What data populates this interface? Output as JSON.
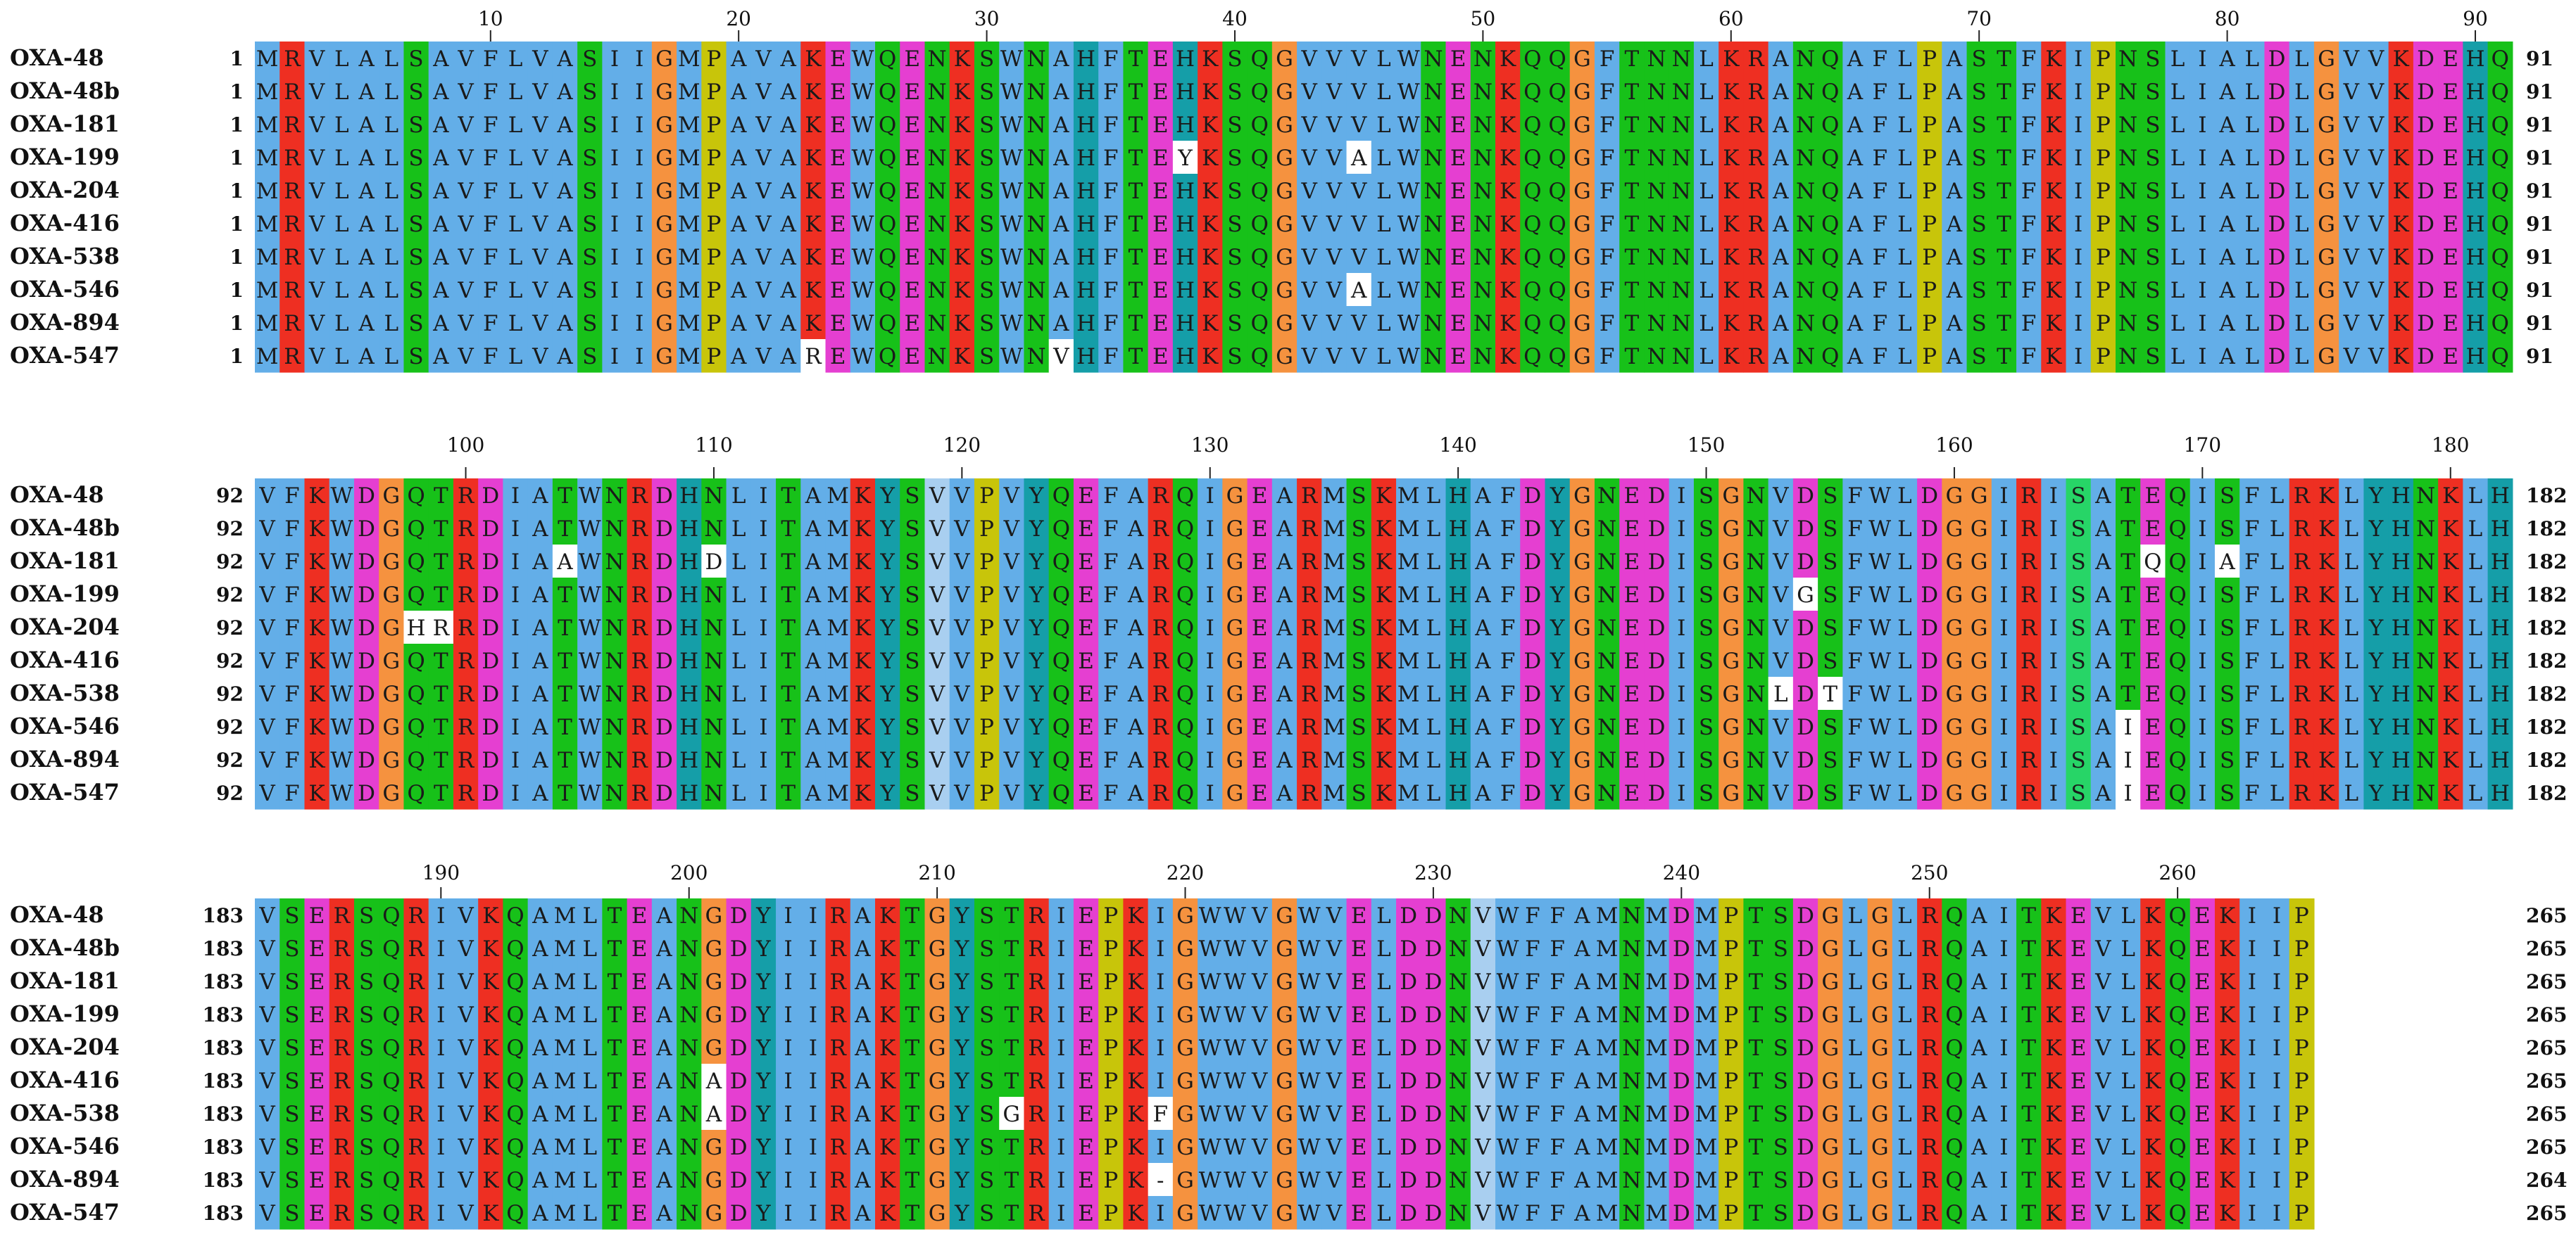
{
  "blocks": [
    {
      "start": 1,
      "rows": [
        {
          "name": "OXA-48",
          "seq": "MRVLALSAVFLVASIIGMPAVAKEWQENKSWNAHFTEHKSQGVVVLWNENKQQGFTNNLKRANQAFLPASTFKIPNSLIALDLGVVKDEHQ",
          "end": 91
        },
        {
          "name": "OXA-48b",
          "seq": "MRVLALSAVFLVASIIGMPAVAKEWQENKSWNAHFTEHKSQGVVVLWNENKQQGFTNNLKRANQAFLPASTFKIPNSLIALDLGVVKDEHQ",
          "end": 91
        },
        {
          "name": "OXA-181",
          "seq": "MRVLALSAVFLVASIIGMPAVAKEWQENKSWNAHFTEHKSQGVVVLWNENKQQGFTNNLKRANQAFLPASTFKIPNSLIALDLGVVKDEHQ",
          "end": 91
        },
        {
          "name": "OXA-199",
          "seq": "MRVLALSAVFLVASIIGMPAVAKEWQENKSWNAHFTEYKSQGVVALWNENKQQGFTNNLKRANQAFLPASTFKIPNSLIALDLGVVKDEHQ",
          "end": 91
        },
        {
          "name": "OXA-204",
          "seq": "MRVLALSAVFLVASIIGMPAVAKEWQENKSWNAHFTEHKSQGVVVLWNENKQQGFTNNLKRANQAFLPASTFKIPNSLIALDLGVVKDEHQ",
          "end": 91
        },
        {
          "name": "OXA-416",
          "seq": "MRVLALSAVFLVASIIGMPAVAKEWQENKSWNAHFTEHKSQGVVVLWNENKQQGFTNNLKRANQAFLPASTFKIPNSLIALDLGVVKDEHQ",
          "end": 91
        },
        {
          "name": "OXA-538",
          "seq": "MRVLALSAVFLVASIIGMPAVAKEWQENKSWNAHFTEHKSQGVVVLWNENKQQGFTNNLKRANQAFLPASTFKIPNSLIALDLGVVKDEHQ",
          "end": 91
        },
        {
          "name": "OXA-546",
          "seq": "MRVLALSAVFLVASIIGMPAVAKEWQENKSWNAHFTEHKSQGVVALWNENKQQGFTNNLKRANQAFLPASTFKIPNSLIALDLGVVKDEHQ",
          "end": 91
        },
        {
          "name": "OXA-894",
          "seq": "MRVLALSAVFLVASIIGMPAVAKEWQENKSWNAHFTEHKSQGVVVLWNENKQQGFTNNLKRANQAFLPASTFKIPNSLIALDLGVVKDEHQ",
          "end": 91
        },
        {
          "name": "OXA-547",
          "seq": "MRVLALSAVFLVASIIGMPAVAREWQENKSWNVHFTEHKSQGVVVLWNENKQQGFTNNLKRANQAFLPASTFKIPNSLIALDLGVVKDEHQ",
          "end": 91
        }
      ]
    },
    {
      "start": 92,
      "rows": [
        {
          "name": "OXA-48",
          "seq": "VFKWDGQTRDIATWNRDHNLITAMKYSVVPVYQEFARQIGEARMSKMLHAFDYGNEDISGNVDSFWLDGGIRISATEQISFLRKLYHNKLH",
          "end": 182
        },
        {
          "name": "OXA-48b",
          "seq": "VFKWDGQTRDIATWNRDHNLITAMKYSVVPVYQEFARQIGEARMSKMLHAFDYGNEDISGNVDSFWLDGGIRISATEQISFLRKLYHNKLH",
          "end": 182
        },
        {
          "name": "OXA-181",
          "seq": "VFKWDGQTRDIAAWNRDHDLITAMKYSVVPVYQEFARQIGEARMSKMLHAFDYGNEDISGNVDSFWLDGGIRISATQQIAFLRKLYHNKLH",
          "end": 182
        },
        {
          "name": "OXA-199",
          "seq": "VFKWDGQTRDIATWNRDHNLITAMKYSVVPVYQEFARQIGEARMSKMLHAFDYGNEDISGNVGSFWLDGGIRISATEQISFLRKLYHNKLH",
          "end": 182
        },
        {
          "name": "OXA-204",
          "seq": "VFKWDGHRRDIATWNRDHNLITAMKYSVVPVYQEFARQIGEARMSKMLHAFDYGNEDISGNVDSFWLDGGIRISATEQISFLRKLYHNKLH",
          "end": 182
        },
        {
          "name": "OXA-416",
          "seq": "VFKWDGQTRDIATWNRDHNLITAMKYSVVPVYQEFARQIGEARMSKMLHAFDYGNEDISGNVDSFWLDGGIRISATEQISFLRKLYHNKLH",
          "end": 182
        },
        {
          "name": "OXA-538",
          "seq": "VFKWDGQTRDIATWNRDHNLITAMKYSVVPVYQEFARQIGEARMSKMLHAFDYGNEDISGNLDTFWLDGGIRISATEQISFLRKLYHNKLH",
          "end": 182
        },
        {
          "name": "OXA-546",
          "seq": "VFKWDGQTRDIATWNRDHNLITAMKYSVVPVYQEFARQIGEARMSKMLHAFDYGNEDISGNVDSFWLDGGIRISAIEQISFLRKLYHNKLH",
          "end": 182
        },
        {
          "name": "OXA-894",
          "seq": "VFKWDGQTRDIATWNRDHNLITAMKYSVVPVYQEFARQIGEARMSKMLHAFDYGNEDISGNVDSFWLDGGIRISAIEQISFLRKLYHNKLH",
          "end": 182
        },
        {
          "name": "OXA-547",
          "seq": "VFKWDGQTRDIATWNRDHNLITAMKYSVVPVYQEFARQIGEARMSKMLHAFDYGNEDISGNVDSFWLDGGIRISAIEQISFLRKLYHNKLH",
          "end": 182
        }
      ]
    },
    {
      "start": 183,
      "rows": [
        {
          "name": "OXA-48",
          "seq": "VSERSQRIVKQAMLTEANGDYIIRAKTGYSTRIEPKIGWWVGWVELDDNVWFFAMNMDMPTSDGLGLRQAITKEVLKQEKIIP",
          "end": 265
        },
        {
          "name": "OXA-48b",
          "seq": "VSERSQRIVKQAMLTEANGDYIIRAKTGYSTRIEPKIGWWVGWVELDDNVWFFAMNMDMPTSDGLGLRQAITKEVLKQEKIIP",
          "end": 265
        },
        {
          "name": "OXA-181",
          "seq": "VSERSQRIVKQAMLTEANGDYIIRAKTGYSTRIEPKIGWWVGWVELDDNVWFFAMNMDMPTSDGLGLRQAITKEVLKQEKIIP",
          "end": 265
        },
        {
          "name": "OXA-199",
          "seq": "VSERSQRIVKQAMLTEANGDYIIRAKTGYSTRIEPKIGWWVGWVELDDNVWFFAMNMDMPTSDGLGLRQAITKEVLKQEKIIP",
          "end": 265
        },
        {
          "name": "OXA-204",
          "seq": "VSERSQRIVKQAMLTEANGDYIIRAKTGYSTRIEPKIGWWVGWVELDDNVWFFAMNMDMPTSDGLGLRQAITKEVLKQEKIIP",
          "end": 265
        },
        {
          "name": "OXA-416",
          "seq": "VSERSQRIVKQAMLTEANADYIIRAKTGYSTRIEPKIGWWVGWVELDDNVWFFAMNMDMPTSDGLGLRQAITKEVLKQEKIIP",
          "end": 265
        },
        {
          "name": "OXA-538",
          "seq": "VSERSQRIVKQAMLTEANADYIIRAKTGYSGRIEPKFGWWVGWVELDDNVWFFAMNMDMPTSDGLGLRQAITKEVLKQEKIIP",
          "end": 265
        },
        {
          "name": "OXA-546",
          "seq": "VSERSQRIVKQAMLTEANGDYIIRAKTGYSTRIEPKIGWWVGWVELDDNVWFFAMNMDMPTSDGLGLRQAITKEVLKQEKIIP",
          "end": 265
        },
        {
          "name": "OXA-894",
          "seq": "VSERSQRIVKQAMLTEANGDYIIRAKTGYSTRIEPK-GWWVGWVELDDNVWFFAMNMDMPTSDGLGLRQAITKEVLKQEKIIP",
          "end": 264
        },
        {
          "name": "OXA-547",
          "seq": "VSERSQRIVKQAMLTEANGDYIIRAKTGYSTRIEPKIGWWVGWVELDDNVWFFAMNMDMPTSDGLGLRQAITKEVLKQEKIIP",
          "end": 265
        }
      ]
    }
  ],
  "ticks": [
    [
      "10",
      "20",
      "30",
      "40",
      "50",
      "60",
      "70",
      "80",
      "90"
    ],
    [
      "100",
      "110",
      "120",
      "130",
      "140",
      "150",
      "160",
      "170",
      "180"
    ],
    [
      "190",
      "200",
      "210",
      "220",
      "230",
      "240",
      "250",
      "260"
    ]
  ],
  "palette": {
    "hydrophobic": "#63aee8",
    "hydrophobic_light": "#a9cff0",
    "positive": "#ee2f22",
    "negative": "#e53fd1",
    "polar": "#17c119",
    "polar_alt": "#27d567",
    "glycine": "#f5923f",
    "proline": "#c8c50a",
    "aromatic": "#159ea8",
    "cysteine": "#f08c8c",
    "mismatch": "#ffffff",
    "gap": "#ffffff"
  }
}
